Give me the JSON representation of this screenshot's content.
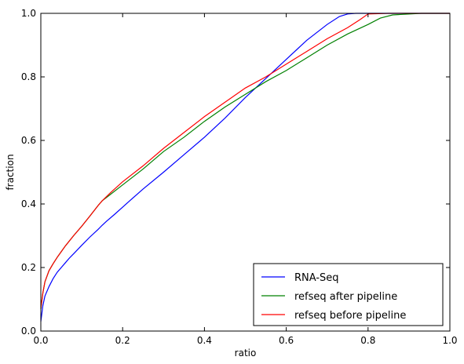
{
  "chart_data": {
    "type": "line",
    "title": "",
    "xlabel": "ratio",
    "ylabel": "fraction",
    "xlim": [
      0.0,
      1.0
    ],
    "ylim": [
      0.0,
      1.0
    ],
    "xticks": [
      "0.0",
      "0.2",
      "0.4",
      "0.6",
      "0.8",
      "1.0"
    ],
    "yticks": [
      "0.0",
      "0.2",
      "0.4",
      "0.6",
      "0.8",
      "1.0"
    ],
    "grid": false,
    "legend_position": "bottom-right",
    "series": [
      {
        "name": "RNA-Seq",
        "color": "#0000ff",
        "points": [
          [
            0.0,
            0.03
          ],
          [
            0.005,
            0.08
          ],
          [
            0.01,
            0.11
          ],
          [
            0.02,
            0.14
          ],
          [
            0.03,
            0.165
          ],
          [
            0.04,
            0.185
          ],
          [
            0.05,
            0.2
          ],
          [
            0.06,
            0.215
          ],
          [
            0.07,
            0.23
          ],
          [
            0.08,
            0.243
          ],
          [
            0.1,
            0.27
          ],
          [
            0.12,
            0.296
          ],
          [
            0.14,
            0.32
          ],
          [
            0.15,
            0.333
          ],
          [
            0.16,
            0.345
          ],
          [
            0.18,
            0.367
          ],
          [
            0.2,
            0.39
          ],
          [
            0.22,
            0.413
          ],
          [
            0.25,
            0.447
          ],
          [
            0.3,
            0.5
          ],
          [
            0.35,
            0.555
          ],
          [
            0.4,
            0.61
          ],
          [
            0.45,
            0.67
          ],
          [
            0.5,
            0.735
          ],
          [
            0.55,
            0.795
          ],
          [
            0.6,
            0.855
          ],
          [
            0.65,
            0.915
          ],
          [
            0.7,
            0.965
          ],
          [
            0.73,
            0.99
          ],
          [
            0.75,
            0.998
          ],
          [
            0.77,
            1.0
          ],
          [
            1.0,
            1.0
          ]
        ]
      },
      {
        "name": "refseq after pipeline",
        "color": "#008000",
        "points": [
          [
            0.0,
            0.07
          ],
          [
            0.005,
            0.12
          ],
          [
            0.01,
            0.155
          ],
          [
            0.02,
            0.19
          ],
          [
            0.03,
            0.212
          ],
          [
            0.04,
            0.232
          ],
          [
            0.05,
            0.25
          ],
          [
            0.06,
            0.268
          ],
          [
            0.08,
            0.3
          ],
          [
            0.1,
            0.33
          ],
          [
            0.12,
            0.362
          ],
          [
            0.14,
            0.395
          ],
          [
            0.15,
            0.41
          ],
          [
            0.17,
            0.43
          ],
          [
            0.2,
            0.46
          ],
          [
            0.25,
            0.51
          ],
          [
            0.3,
            0.565
          ],
          [
            0.35,
            0.61
          ],
          [
            0.4,
            0.66
          ],
          [
            0.45,
            0.705
          ],
          [
            0.5,
            0.745
          ],
          [
            0.55,
            0.785
          ],
          [
            0.6,
            0.82
          ],
          [
            0.65,
            0.86
          ],
          [
            0.7,
            0.9
          ],
          [
            0.75,
            0.935
          ],
          [
            0.8,
            0.965
          ],
          [
            0.83,
            0.985
          ],
          [
            0.86,
            0.995
          ],
          [
            0.93,
            1.0
          ],
          [
            1.0,
            1.0
          ]
        ]
      },
      {
        "name": "refseq before pipeline",
        "color": "#ff0000",
        "points": [
          [
            0.0,
            0.07
          ],
          [
            0.005,
            0.12
          ],
          [
            0.01,
            0.155
          ],
          [
            0.02,
            0.19
          ],
          [
            0.03,
            0.212
          ],
          [
            0.04,
            0.232
          ],
          [
            0.05,
            0.25
          ],
          [
            0.06,
            0.268
          ],
          [
            0.08,
            0.3
          ],
          [
            0.1,
            0.33
          ],
          [
            0.12,
            0.362
          ],
          [
            0.14,
            0.395
          ],
          [
            0.15,
            0.41
          ],
          [
            0.17,
            0.435
          ],
          [
            0.2,
            0.47
          ],
          [
            0.25,
            0.52
          ],
          [
            0.3,
            0.575
          ],
          [
            0.35,
            0.625
          ],
          [
            0.4,
            0.675
          ],
          [
            0.45,
            0.72
          ],
          [
            0.5,
            0.765
          ],
          [
            0.55,
            0.8
          ],
          [
            0.6,
            0.84
          ],
          [
            0.65,
            0.88
          ],
          [
            0.7,
            0.92
          ],
          [
            0.75,
            0.955
          ],
          [
            0.78,
            0.98
          ],
          [
            0.8,
            0.998
          ],
          [
            0.85,
            1.0
          ],
          [
            1.0,
            1.0
          ]
        ]
      }
    ]
  }
}
